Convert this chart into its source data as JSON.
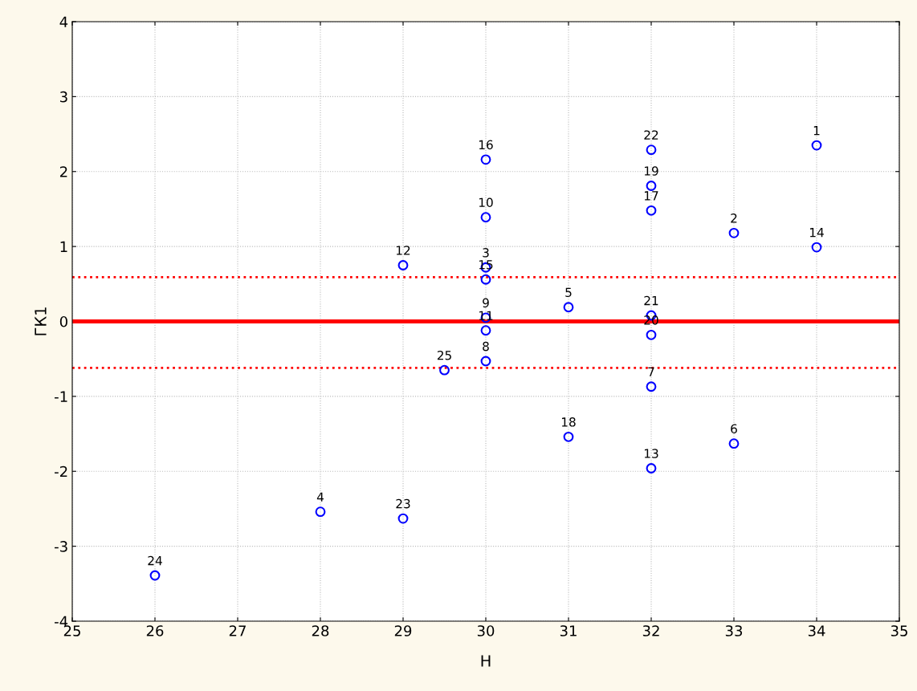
{
  "chart_data": {
    "type": "scatter",
    "xlabel": "H",
    "ylabel": "ГК1",
    "x": [
      34,
      33,
      30,
      28,
      31,
      33,
      32,
      30,
      30,
      30,
      30,
      29,
      32,
      34,
      30,
      30,
      32,
      31,
      32,
      32,
      32,
      32,
      29,
      26,
      29.5
    ],
    "series": [
      {
        "color": "#0000ff",
        "values": [
          2.35,
          1.18,
          0.72,
          -2.54,
          0.19,
          -1.63,
          -0.87,
          -0.53,
          0.05,
          1.39,
          -0.12,
          0.75,
          -1.96,
          0.99,
          0.56,
          2.16,
          1.48,
          -1.54,
          1.81,
          -0.18,
          0.08,
          2.29,
          -2.63,
          -3.39,
          -0.65
        ]
      }
    ],
    "annotations": [
      {
        "text": "1",
        "x": 34,
        "y": 2.35
      },
      {
        "text": "2",
        "x": 33,
        "y": 1.18
      },
      {
        "text": "3",
        "x": 30,
        "y": 0.72
      },
      {
        "text": "4",
        "x": 28,
        "y": -2.54
      },
      {
        "text": "5",
        "x": 31,
        "y": 0.19
      },
      {
        "text": "6",
        "x": 33,
        "y": -1.63
      },
      {
        "text": "7",
        "x": 32,
        "y": -0.87
      },
      {
        "text": "8",
        "x": 30,
        "y": -0.53
      },
      {
        "text": "9",
        "x": 30,
        "y": 0.05
      },
      {
        "text": "10",
        "x": 30,
        "y": 1.39
      },
      {
        "text": "11",
        "x": 30,
        "y": -0.12
      },
      {
        "text": "12",
        "x": 29,
        "y": 0.75
      },
      {
        "text": "13",
        "x": 32,
        "y": -1.96
      },
      {
        "text": "14",
        "x": 34,
        "y": 0.99
      },
      {
        "text": "15",
        "x": 30,
        "y": 0.56
      },
      {
        "text": "16",
        "x": 30,
        "y": 2.16
      },
      {
        "text": "17",
        "x": 32,
        "y": 1.48
      },
      {
        "text": "18",
        "x": 31,
        "y": -1.54
      },
      {
        "text": "19",
        "x": 32,
        "y": 1.81
      },
      {
        "text": "20",
        "x": 32,
        "y": -0.18
      },
      {
        "text": "21",
        "x": 32,
        "y": 0.08
      },
      {
        "text": "22",
        "x": 32,
        "y": 2.29
      },
      {
        "text": "23",
        "x": 29,
        "y": -2.63
      },
      {
        "text": "24",
        "x": 26,
        "y": -3.39
      },
      {
        "text": "25",
        "x": 29.5,
        "y": -0.65
      }
    ],
    "ref_lines": [
      {
        "axis": "y",
        "value": 0,
        "color": "#ff0000",
        "line_style": "solid"
      },
      {
        "axis": "y",
        "value": 0.59,
        "color": "#ff0000",
        "line_style": "dotted"
      },
      {
        "axis": "y",
        "value": -0.62,
        "color": "#ff0000",
        "line_style": "dotted"
      }
    ],
    "xlim": [
      25,
      35
    ],
    "xticks": [
      25,
      26,
      27,
      28,
      29,
      30,
      31,
      32,
      33,
      34,
      35
    ],
    "ylim": [
      -4,
      4
    ],
    "yticks": [
      -4,
      -3,
      -2,
      -1,
      0,
      1,
      2,
      3,
      4
    ],
    "grid": true,
    "marker": "circle",
    "legend": false
  }
}
